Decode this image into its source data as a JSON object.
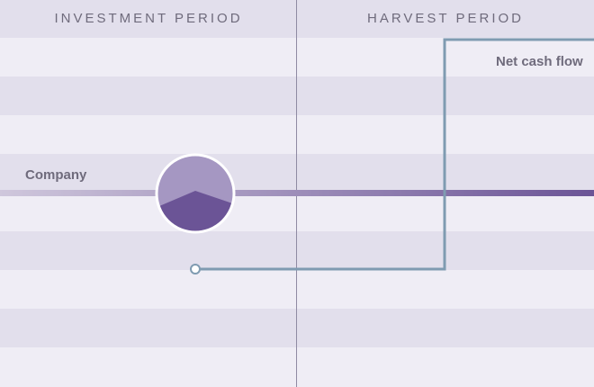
{
  "periods": {
    "investment": "INVESTMENT PERIOD",
    "harvest": "HARVEST PERIOD"
  },
  "labels": {
    "company": "Company",
    "net_cash_flow": "Net cash flow"
  },
  "colors": {
    "stripe_dark": "#e2dfec",
    "stripe_light": "#efedf5",
    "company_line_start": "#cfc7dc",
    "company_line_end": "#6b5496",
    "cash_flow_line": "#7f9bb1",
    "circle_top": "#a597c2",
    "circle_bottom": "#6b5496",
    "divider": "#8f8aa3",
    "text": "#6f6b7c"
  }
}
